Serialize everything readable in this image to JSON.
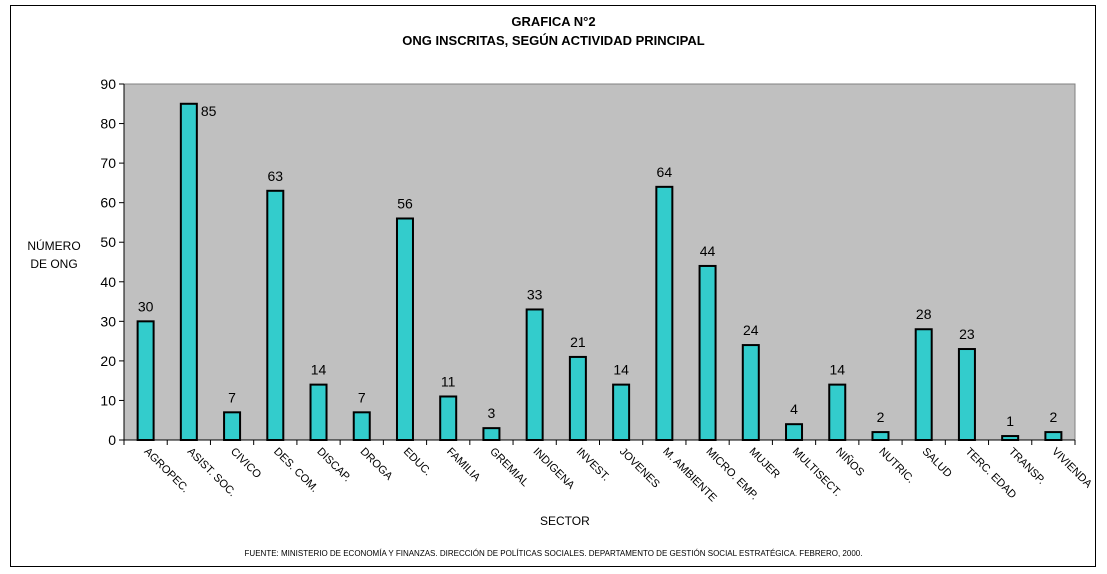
{
  "chart_data": {
    "type": "bar",
    "title": "GRAFICA N°2",
    "subtitle": "ONG INSCRITAS, SEGÚN ACTIVIDAD PRINCIPAL",
    "xlabel": "SECTOR",
    "ylabel_line1": "NÚMERO",
    "ylabel_line2": "DE ONG",
    "ylim": [
      0,
      90
    ],
    "yticks": [
      "0",
      "10",
      "20",
      "30",
      "40",
      "50",
      "60",
      "70",
      "80",
      "90"
    ],
    "categories": [
      "AGROPEC.",
      "ASIST. SOC.",
      "CIVICO",
      "DES. COM.",
      "DISCAP.",
      "DROGA",
      "EDUC.",
      "FAMILIA",
      "GREMIAL",
      "INDIGENA",
      "INVEST.",
      "JOVENES",
      "M. AMBIENTE",
      "MICRO. EMP.",
      "MUJER",
      "MULTISECT.",
      "NIÑOS",
      "NUTRIC.",
      "SALUD",
      "TERC. EDAD",
      "TRANSP.",
      "VIVIENDA"
    ],
    "values": [
      30,
      85,
      7,
      63,
      14,
      7,
      56,
      11,
      3,
      33,
      21,
      14,
      64,
      44,
      24,
      4,
      14,
      2,
      28,
      23,
      1,
      2
    ],
    "value_labels": [
      "30",
      "85",
      "7",
      "63",
      "14",
      "7",
      "56",
      "11",
      "3",
      "33",
      "21",
      "14",
      "64",
      "44",
      "24",
      "4",
      "14",
      "2",
      "28",
      "23",
      "1",
      "2"
    ],
    "grid": false,
    "colors": {
      "plot_bg": "#c0c0c0",
      "bar": "#33cccc",
      "bar_border": "#000000"
    }
  },
  "source": "FUENTE: MINISTERIO DE ECONOMÍA Y FINANZAS. DIRECCIÓN DE POLÍTICAS SOCIALES. DEPARTAMENTO  DE GESTIÓN SOCIAL ESTRATÉGICA. FEBRERO, 2000."
}
